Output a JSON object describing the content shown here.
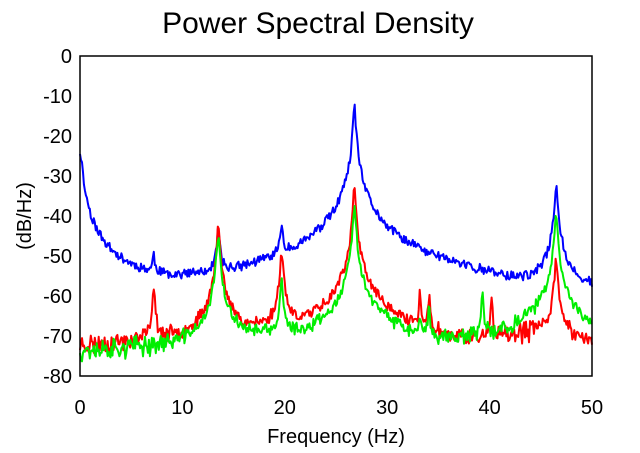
{
  "chart_data": {
    "type": "line",
    "title": "Power Spectral Density",
    "xlabel": "Frequency (Hz)",
    "ylabel": "(dB/Hz)",
    "xlim": [
      0,
      50
    ],
    "ylim": [
      -80,
      0
    ],
    "xticks": [
      0,
      10,
      20,
      30,
      40,
      50
    ],
    "yticks": [
      0,
      -10,
      -20,
      -30,
      -40,
      -50,
      -60,
      -70,
      -80
    ],
    "grid": false,
    "legend": "none",
    "series": [
      {
        "color": "#0000ff",
        "baseline": [
          [
            0,
            -67
          ],
          [
            5,
            -67
          ],
          [
            10,
            -66
          ],
          [
            13,
            -64
          ],
          [
            16,
            -63
          ],
          [
            19,
            -61
          ],
          [
            22,
            -59
          ],
          [
            25,
            -55
          ],
          [
            27,
            -50
          ],
          [
            30,
            -56
          ],
          [
            35,
            -58
          ],
          [
            38,
            -60
          ],
          [
            42,
            -64
          ],
          [
            44,
            -65
          ],
          [
            47,
            -62
          ],
          [
            50,
            -64
          ]
        ],
        "peaks": [
          [
            0,
            -24,
            0.18
          ],
          [
            7.2,
            -51.5,
            0.1
          ],
          [
            13.5,
            -44,
            0.12
          ],
          [
            19.7,
            -43,
            0.12
          ],
          [
            26.8,
            -12.5,
            0.1
          ],
          [
            46.5,
            -32.5,
            0.12
          ]
        ],
        "noise_amp": 2.2,
        "seed": 11
      },
      {
        "color": "#ff0000",
        "baseline": [
          [
            0,
            -73
          ],
          [
            10,
            -72
          ],
          [
            16,
            -71
          ],
          [
            22,
            -71
          ],
          [
            26,
            -69
          ],
          [
            28,
            -69
          ],
          [
            32,
            -72
          ],
          [
            38,
            -73
          ],
          [
            42,
            -71
          ],
          [
            45,
            -69
          ],
          [
            47,
            -70
          ],
          [
            50,
            -73
          ]
        ],
        "peaks": [
          [
            7.2,
            -58,
            0.1
          ],
          [
            13.5,
            -43,
            0.12
          ],
          [
            19.7,
            -49,
            0.12
          ],
          [
            26.8,
            -33,
            0.1
          ],
          [
            33.2,
            -58,
            0.06
          ],
          [
            34.1,
            -59,
            0.06
          ],
          [
            40.2,
            -60,
            0.06
          ],
          [
            46.5,
            -51,
            0.12
          ]
        ],
        "noise_amp": 2.4,
        "seed": 23
      },
      {
        "color": "#00ee00",
        "baseline": [
          [
            0,
            -74
          ],
          [
            10,
            -73
          ],
          [
            16,
            -71
          ],
          [
            22,
            -72
          ],
          [
            26,
            -68
          ],
          [
            28,
            -68
          ],
          [
            32,
            -72
          ],
          [
            38,
            -72
          ],
          [
            42,
            -70
          ],
          [
            45,
            -66
          ],
          [
            47,
            -66
          ],
          [
            50,
            -70
          ]
        ],
        "peaks": [
          [
            13.5,
            -45,
            0.12
          ],
          [
            19.7,
            -56,
            0.1
          ],
          [
            26.8,
            -37,
            0.1
          ],
          [
            33.2,
            -67,
            0.06
          ],
          [
            34.1,
            -62,
            0.06
          ],
          [
            39.3,
            -58,
            0.06
          ],
          [
            46.5,
            -40,
            0.12
          ]
        ],
        "noise_amp": 2.2,
        "seed": 37
      }
    ]
  }
}
